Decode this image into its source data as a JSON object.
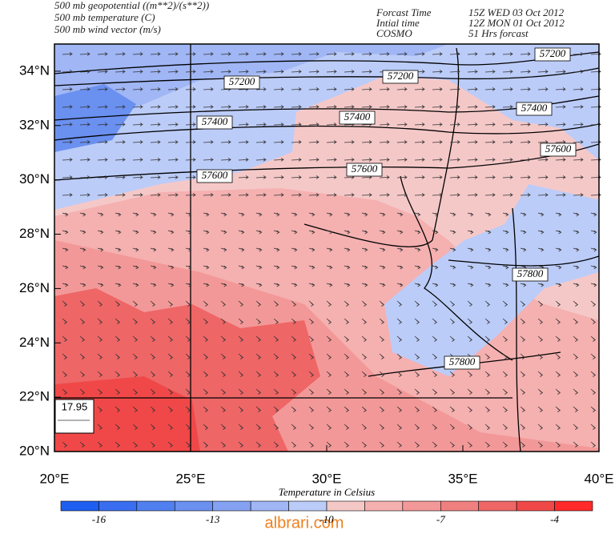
{
  "header": {
    "left": [
      "500 mb geopotential ((m**2)/(s**2))",
      "500 mb temperature (C)",
      "500 mb wind vector (m/s)"
    ],
    "right": [
      [
        "Forcast Time",
        "15Z WED 03 Oct 2012"
      ],
      [
        "Intial time",
        "12Z MON 01 Oct 2012"
      ],
      [
        "COSMO",
        "51 Hrs forcast"
      ]
    ]
  },
  "lat_ticks": [
    "20°N",
    "22°N",
    "24°N",
    "26°N",
    "28°N",
    "30°N",
    "32°N",
    "34°N"
  ],
  "lon_ticks": [
    "20°E",
    "25°E",
    "30°E",
    "35°E",
    "40°E"
  ],
  "contour_labels": [
    "57200",
    "57200",
    "57200",
    "57400",
    "57400",
    "57400",
    "57600",
    "57600",
    "57600",
    "57800",
    "57800"
  ],
  "reference_vector": "17.95",
  "colorbar": {
    "title": "Temperature in Celsius",
    "labels": [
      "-16",
      "-13",
      "-10",
      "-7",
      "-4"
    ],
    "colors": [
      "#1e5ef0",
      "#3a6ef0",
      "#5080f0",
      "#6a90f0",
      "#85a2f2",
      "#a0b6f5",
      "#bcccf8",
      "#f5c8c8",
      "#f5b0b0",
      "#f39898",
      "#f08080",
      "#ee6666",
      "#f04848",
      "#ff2a2a"
    ]
  },
  "watermark": "albrari.com"
}
